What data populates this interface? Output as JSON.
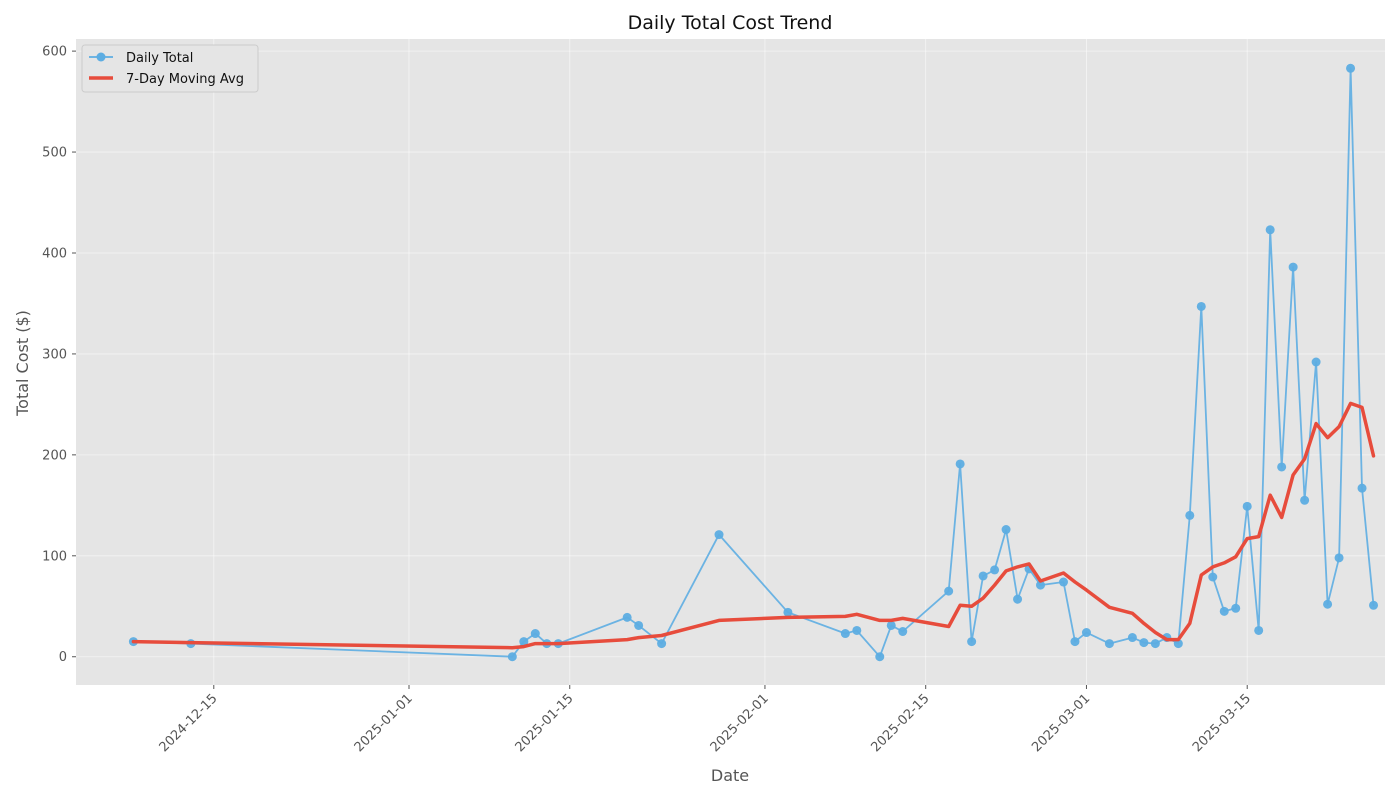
{
  "chart_data": {
    "type": "line",
    "title": "Daily Total Cost Trend",
    "xlabel": "Date",
    "ylabel": "Total Cost ($)",
    "x_ticks": [
      "2024-12-15",
      "2025-01-01",
      "2025-01-15",
      "2025-02-01",
      "2025-02-15",
      "2025-03-01",
      "2025-03-15"
    ],
    "y_ticks": [
      0,
      100,
      200,
      300,
      400,
      500,
      600
    ],
    "xlim": [
      "2024-12-03",
      "2025-03-27"
    ],
    "ylim": [
      -28,
      612
    ],
    "grid": true,
    "legend_position": "top-left",
    "series": [
      {
        "name": "Daily Total",
        "style": "line-with-markers",
        "color": "#5dade2",
        "points": [
          [
            "2024-12-08",
            15
          ],
          [
            "2024-12-13",
            13
          ],
          [
            "2025-01-10",
            0
          ],
          [
            "2025-01-11",
            15
          ],
          [
            "2025-01-12",
            23
          ],
          [
            "2025-01-13",
            13
          ],
          [
            "2025-01-14",
            13
          ],
          [
            "2025-01-20",
            39
          ],
          [
            "2025-01-21",
            31
          ],
          [
            "2025-01-23",
            13
          ],
          [
            "2025-01-28",
            121
          ],
          [
            "2025-02-03",
            44
          ],
          [
            "2025-02-08",
            23
          ],
          [
            "2025-02-09",
            26
          ],
          [
            "2025-02-11",
            0
          ],
          [
            "2025-02-12",
            31
          ],
          [
            "2025-02-13",
            25
          ],
          [
            "2025-02-17",
            65
          ],
          [
            "2025-02-18",
            191
          ],
          [
            "2025-02-19",
            15
          ],
          [
            "2025-02-20",
            80
          ],
          [
            "2025-02-21",
            86
          ],
          [
            "2025-02-22",
            126
          ],
          [
            "2025-02-23",
            57
          ],
          [
            "2025-02-24",
            87
          ],
          [
            "2025-02-25",
            71
          ],
          [
            "2025-02-27",
            74
          ],
          [
            "2025-02-28",
            15
          ],
          [
            "2025-03-01",
            24
          ],
          [
            "2025-03-03",
            13
          ],
          [
            "2025-03-05",
            19
          ],
          [
            "2025-03-06",
            14
          ],
          [
            "2025-03-07",
            13
          ],
          [
            "2025-03-08",
            19
          ],
          [
            "2025-03-09",
            13
          ],
          [
            "2025-03-10",
            140
          ],
          [
            "2025-03-11",
            347
          ],
          [
            "2025-03-12",
            79
          ],
          [
            "2025-03-13",
            45
          ],
          [
            "2025-03-14",
            48
          ],
          [
            "2025-03-15",
            149
          ],
          [
            "2025-03-16",
            26
          ],
          [
            "2025-03-17",
            423
          ],
          [
            "2025-03-18",
            188
          ],
          [
            "2025-03-19",
            386
          ],
          [
            "2025-03-20",
            155
          ],
          [
            "2025-03-21",
            292
          ],
          [
            "2025-03-22",
            52
          ],
          [
            "2025-03-23",
            98
          ],
          [
            "2025-03-24",
            583
          ],
          [
            "2025-03-25",
            167
          ],
          [
            "2025-03-26",
            51
          ]
        ]
      },
      {
        "name": "7-Day Moving Avg",
        "style": "thick-line",
        "color": "#e74c3c",
        "points": [
          [
            "2024-12-08",
            15
          ],
          [
            "2024-12-13",
            14
          ],
          [
            "2025-01-10",
            9
          ],
          [
            "2025-01-11",
            10
          ],
          [
            "2025-01-12",
            13
          ],
          [
            "2025-01-13",
            13
          ],
          [
            "2025-01-14",
            13
          ],
          [
            "2025-01-20",
            17
          ],
          [
            "2025-01-21",
            19
          ],
          [
            "2025-01-23",
            21
          ],
          [
            "2025-01-28",
            36
          ],
          [
            "2025-02-03",
            39
          ],
          [
            "2025-02-08",
            40
          ],
          [
            "2025-02-09",
            42
          ],
          [
            "2025-02-11",
            36
          ],
          [
            "2025-02-12",
            36
          ],
          [
            "2025-02-13",
            38
          ],
          [
            "2025-02-17",
            30
          ],
          [
            "2025-02-18",
            51
          ],
          [
            "2025-02-19",
            50
          ],
          [
            "2025-02-20",
            58
          ],
          [
            "2025-02-21",
            71
          ],
          [
            "2025-02-22",
            85
          ],
          [
            "2025-02-23",
            89
          ],
          [
            "2025-02-24",
            92
          ],
          [
            "2025-02-25",
            75
          ],
          [
            "2025-02-27",
            83
          ],
          [
            "2025-02-28",
            74
          ],
          [
            "2025-03-01",
            66
          ],
          [
            "2025-03-03",
            49
          ],
          [
            "2025-03-05",
            43
          ],
          [
            "2025-03-06",
            33
          ],
          [
            "2025-03-07",
            24
          ],
          [
            "2025-03-08",
            17
          ],
          [
            "2025-03-09",
            17
          ],
          [
            "2025-03-10",
            33
          ],
          [
            "2025-03-11",
            81
          ],
          [
            "2025-03-12",
            89
          ],
          [
            "2025-03-13",
            93
          ],
          [
            "2025-03-14",
            99
          ],
          [
            "2025-03-15",
            117
          ],
          [
            "2025-03-16",
            119
          ],
          [
            "2025-03-17",
            160
          ],
          [
            "2025-03-18",
            138
          ],
          [
            "2025-03-19",
            180
          ],
          [
            "2025-03-20",
            196
          ],
          [
            "2025-03-21",
            231
          ],
          [
            "2025-03-22",
            217
          ],
          [
            "2025-03-23",
            228
          ],
          [
            "2025-03-24",
            251
          ],
          [
            "2025-03-25",
            247
          ],
          [
            "2025-03-26",
            199
          ]
        ]
      }
    ]
  }
}
